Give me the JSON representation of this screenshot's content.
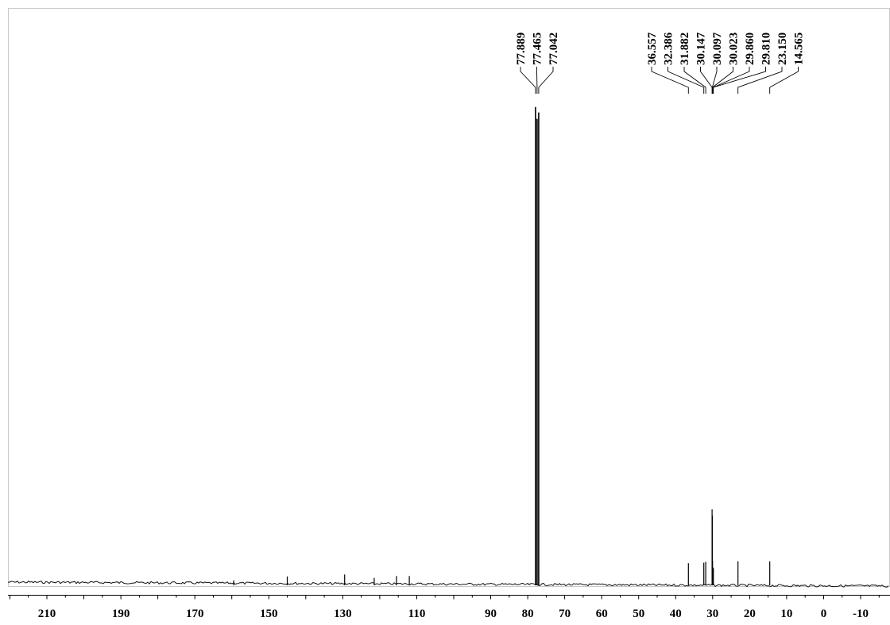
{
  "chart_data": {
    "type": "line",
    "title": "",
    "xlabel": "",
    "ylabel": "",
    "x_reversed": true,
    "xlim": [
      221,
      -17
    ],
    "ylim": [
      0,
      100
    ],
    "grid": false,
    "x_ticks": [
      210,
      190,
      170,
      150,
      130,
      110,
      90,
      80,
      70,
      60,
      50,
      40,
      30,
      20,
      10,
      0,
      -10
    ],
    "x_tick_labels": [
      "210",
      "190",
      "170",
      "150",
      "130",
      "110",
      "90",
      "80",
      "70",
      "60",
      "50",
      "40",
      "30",
      "20",
      "10",
      "0",
      "-10"
    ],
    "peak_labels": [
      {
        "group": 1,
        "ppm": 77.889,
        "text": "77.889"
      },
      {
        "group": 1,
        "ppm": 77.465,
        "text": "77.465"
      },
      {
        "group": 1,
        "ppm": 77.042,
        "text": "77.042"
      },
      {
        "group": 2,
        "ppm": 36.557,
        "text": "36.557"
      },
      {
        "group": 2,
        "ppm": 32.386,
        "text": "32.386"
      },
      {
        "group": 2,
        "ppm": 31.882,
        "text": "31.882"
      },
      {
        "group": 2,
        "ppm": 30.147,
        "text": "30.147"
      },
      {
        "group": 2,
        "ppm": 30.097,
        "text": "30.097"
      },
      {
        "group": 2,
        "ppm": 30.023,
        "text": "30.023"
      },
      {
        "group": 2,
        "ppm": 29.86,
        "text": "29.860"
      },
      {
        "group": 2,
        "ppm": 29.81,
        "text": "29.810"
      },
      {
        "group": 2,
        "ppm": 23.15,
        "text": "23.150"
      },
      {
        "group": 2,
        "ppm": 14.565,
        "text": "14.565"
      }
    ],
    "peaks": [
      {
        "ppm": 77.889,
        "height": 97.6
      },
      {
        "ppm": 77.465,
        "height": 95.2
      },
      {
        "ppm": 77.042,
        "height": 96.5
      },
      {
        "ppm": 36.557,
        "height": 4.5
      },
      {
        "ppm": 32.386,
        "height": 4.6
      },
      {
        "ppm": 31.882,
        "height": 4.8
      },
      {
        "ppm": 30.147,
        "height": 15.5
      },
      {
        "ppm": 30.097,
        "height": 14.2
      },
      {
        "ppm": 30.023,
        "height": 5.0
      },
      {
        "ppm": 29.86,
        "height": 3.6
      },
      {
        "ppm": 29.81,
        "height": 3.4
      },
      {
        "ppm": 23.15,
        "height": 4.9
      },
      {
        "ppm": 14.565,
        "height": 4.9
      },
      {
        "ppm": 159.5,
        "height": 1.0
      },
      {
        "ppm": 145.0,
        "height": 1.8
      },
      {
        "ppm": 129.5,
        "height": 2.2
      },
      {
        "ppm": 121.5,
        "height": 1.5
      },
      {
        "ppm": 115.5,
        "height": 1.9
      },
      {
        "ppm": 112.0,
        "height": 1.9
      }
    ]
  }
}
